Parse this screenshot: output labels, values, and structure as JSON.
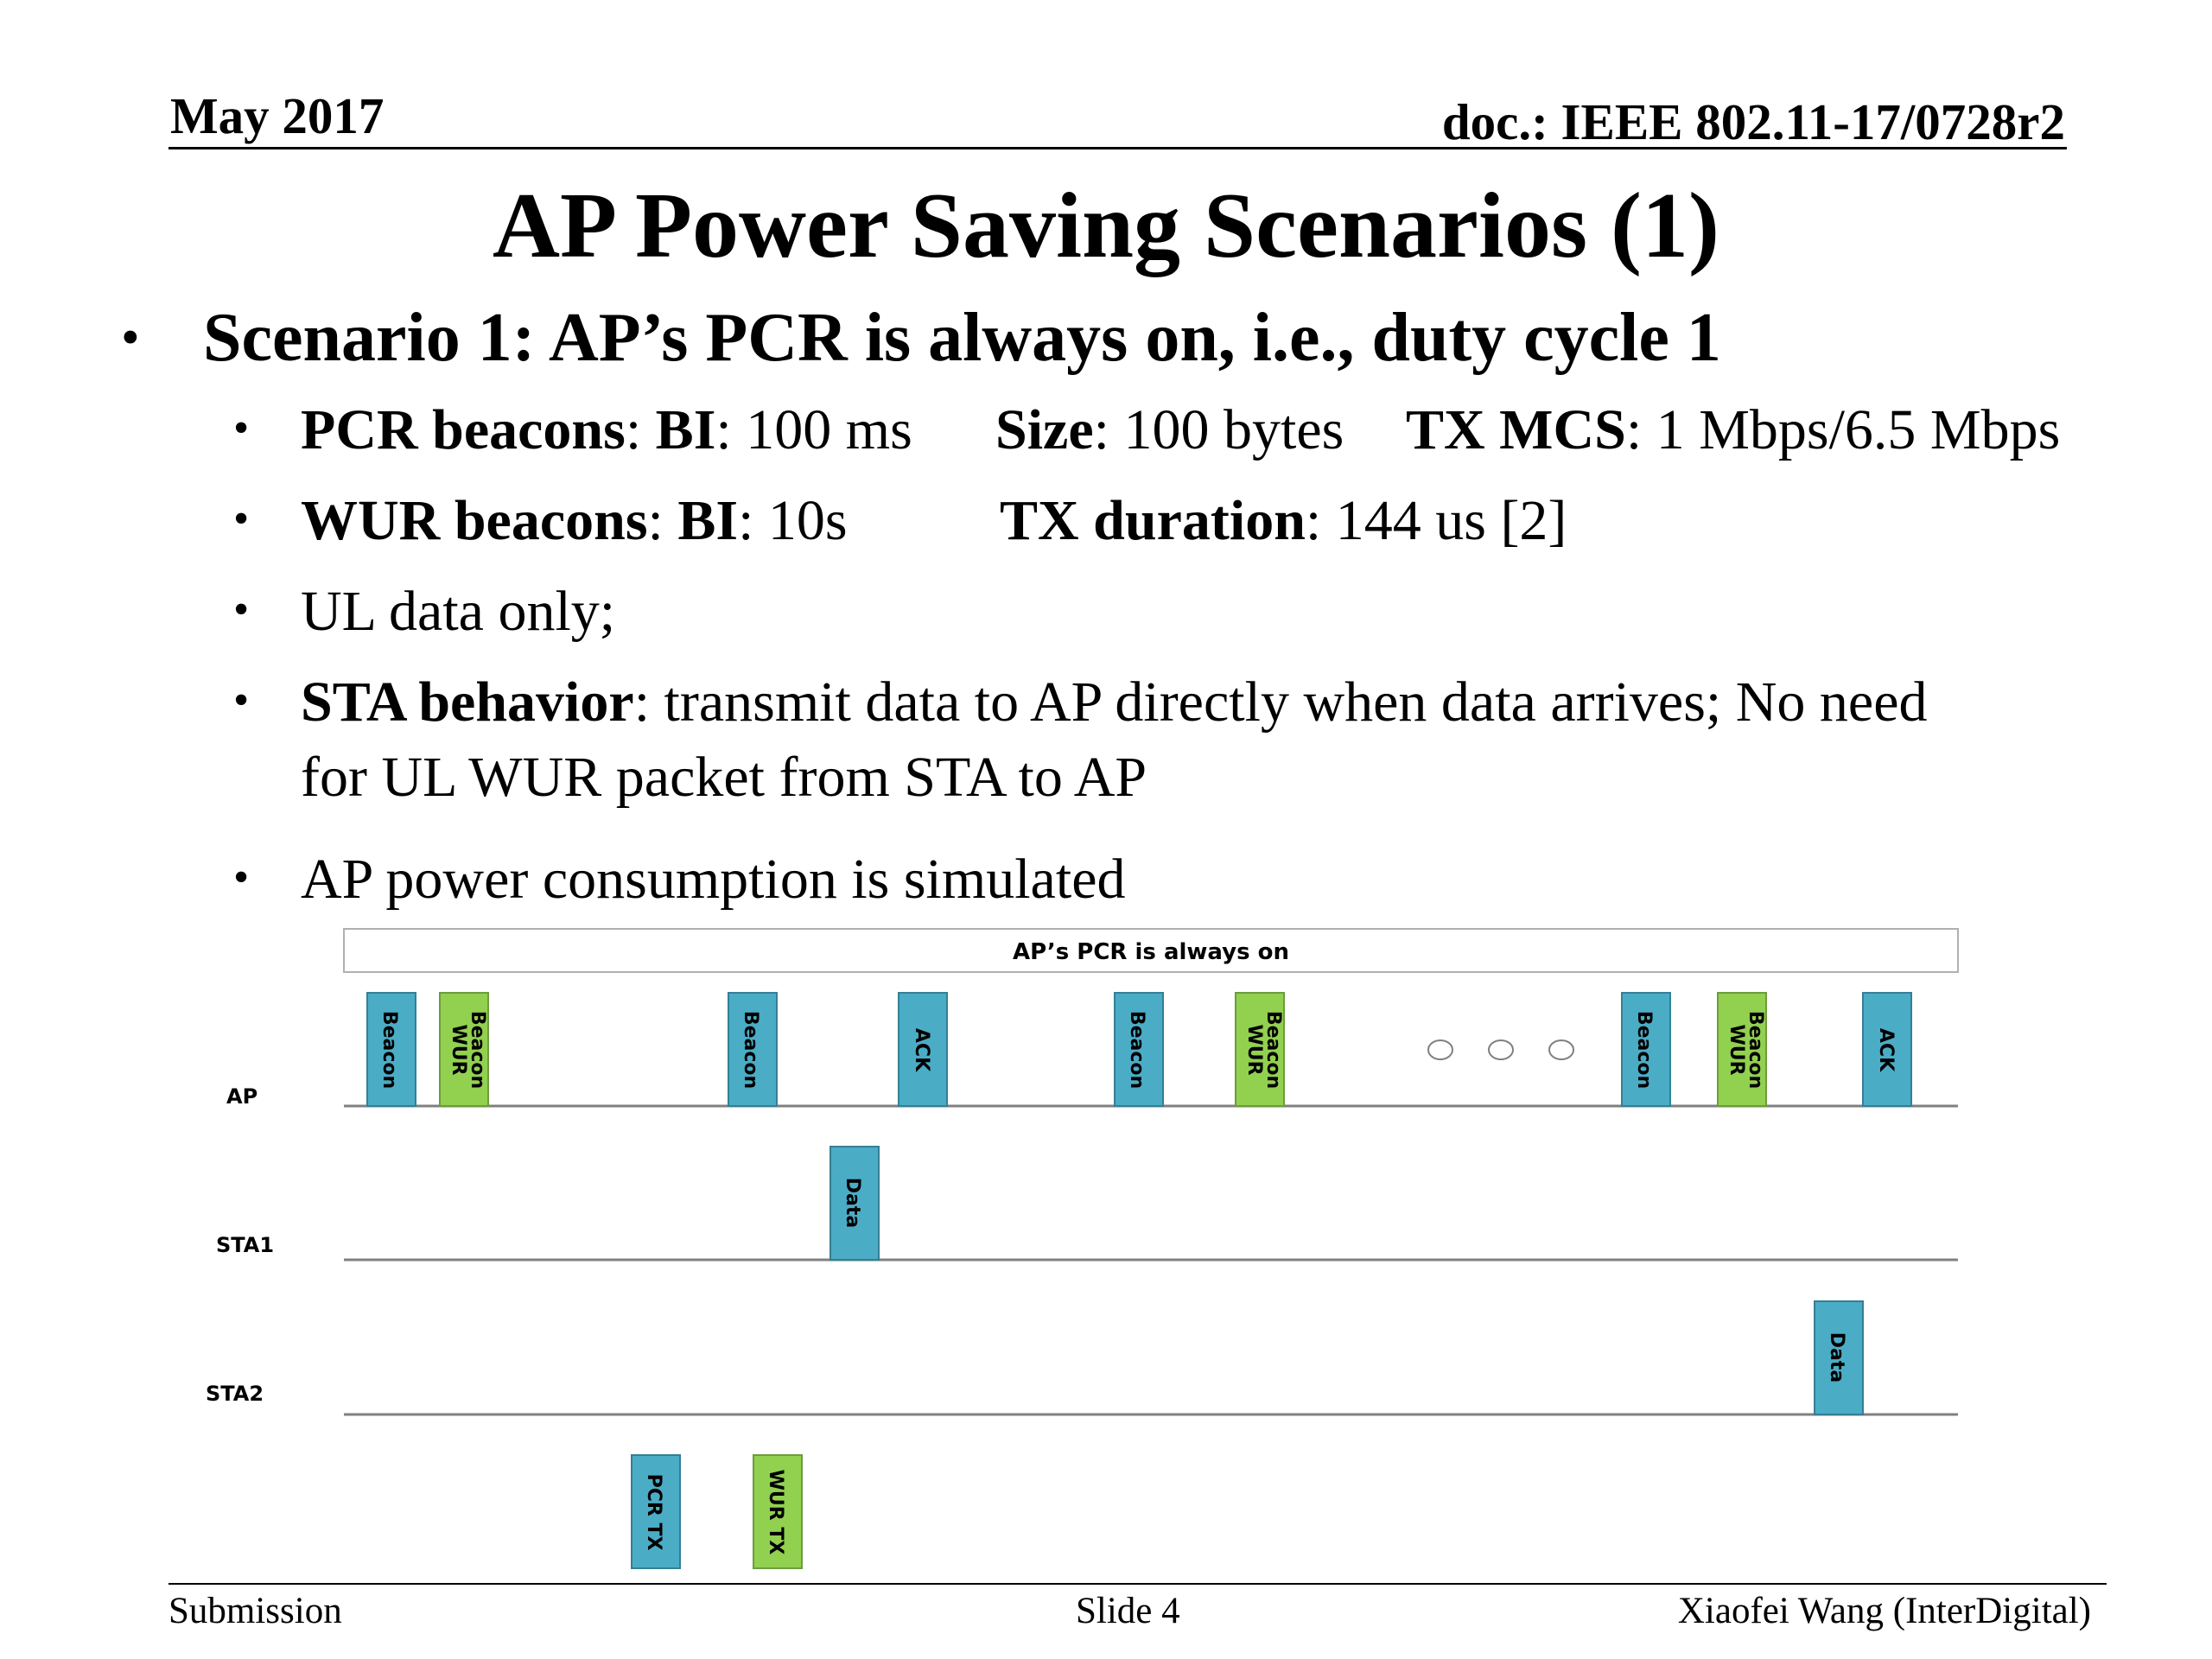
{
  "header": {
    "date": "May 2017",
    "doc_id": "doc.: IEEE 802.11-17/0728r2"
  },
  "title": "AP Power Saving Scenarios (1)",
  "main_bullet": "Scenario 1: AP’s PCR is always on, i.e., duty cycle 1",
  "sub_bullets": {
    "pcr": {
      "label": "PCR beacons",
      "bi_label": "BI",
      "bi_value": ": 100 ms",
      "size_label": "Size",
      "size_value": ": 100 bytes",
      "mcs_label": "TX MCS",
      "mcs_value": ": 1 Mbps/6.5 Mbps"
    },
    "wur": {
      "label": "WUR beacons",
      "bi_label": "BI",
      "bi_value": ": 10s",
      "dur_label": "TX duration",
      "dur_value": ": 144 us [2]"
    },
    "ul": "UL data only;",
    "sta": {
      "label": "STA behavior",
      "line1": ": transmit data to AP directly when data arrives; No need",
      "line2": "for UL WUR packet from STA to AP"
    },
    "power": "AP power consumption is simulated"
  },
  "diagram": {
    "banner": "AP’s PCR is always on",
    "rows": [
      "AP",
      "STA1",
      "STA2"
    ],
    "colors": {
      "blue": "#4bacc6",
      "green": "#92d050"
    },
    "ap_blocks": [
      {
        "label": "Beacon",
        "color": "blue"
      },
      {
        "label": "WUR Beacon",
        "color": "green"
      },
      {
        "label": "Beacon",
        "color": "blue"
      },
      {
        "label": "ACK",
        "color": "blue"
      },
      {
        "label": "Beacon",
        "color": "blue"
      },
      {
        "label": "WUR Beacon",
        "color": "green"
      },
      {
        "label": "Beacon",
        "color": "blue"
      },
      {
        "label": "WUR Beacon",
        "color": "green"
      },
      {
        "label": "ACK",
        "color": "blue"
      }
    ],
    "sta1_block": "Data",
    "sta2_block": "Data",
    "legend": [
      {
        "label": "PCR TX",
        "color": "blue"
      },
      {
        "label": "WUR TX",
        "color": "green"
      }
    ]
  },
  "footer": {
    "left": "Submission",
    "center": "Slide 4",
    "right": "Xiaofei Wang (InterDigital)"
  }
}
